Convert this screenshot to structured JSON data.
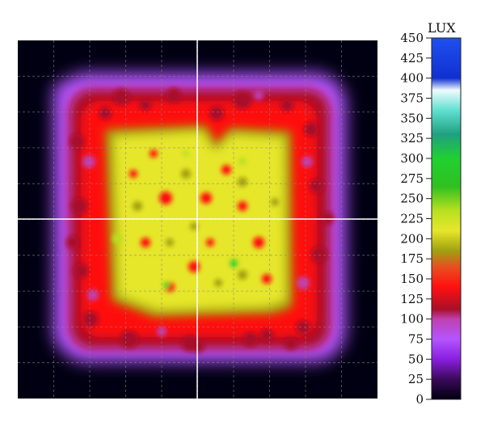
{
  "chart_data": {
    "type": "heatmap",
    "title": "",
    "unit": "LUX",
    "colorbar": {
      "min": 0,
      "max": 450,
      "ticks": [
        "450",
        "425",
        "400",
        "375",
        "350",
        "325",
        "300",
        "275",
        "250",
        "225",
        "200",
        "175",
        "150",
        "125",
        "100",
        "75",
        "50",
        "25",
        "0"
      ],
      "stops": [
        {
          "value": 0,
          "color": "#000010"
        },
        {
          "value": 25,
          "color": "#3a0a5a"
        },
        {
          "value": 50,
          "color": "#8a1ee0"
        },
        {
          "value": 75,
          "color": "#b455ff"
        },
        {
          "value": 100,
          "color": "#c040b0"
        },
        {
          "value": 112,
          "color": "#a8102a"
        },
        {
          "value": 140,
          "color": "#ff1010"
        },
        {
          "value": 165,
          "color": "#e85020"
        },
        {
          "value": 185,
          "color": "#a0a010"
        },
        {
          "value": 210,
          "color": "#e6e62a"
        },
        {
          "value": 235,
          "color": "#b8e020"
        },
        {
          "value": 265,
          "color": "#30c020"
        },
        {
          "value": 300,
          "color": "#20d030"
        },
        {
          "value": 330,
          "color": "#20a080"
        },
        {
          "value": 360,
          "color": "#60e0d0"
        },
        {
          "value": 385,
          "color": "#f0fbff"
        },
        {
          "value": 400,
          "color": "#1030d0"
        },
        {
          "value": 450,
          "color": "#2050f0"
        }
      ]
    },
    "crosshair": {
      "x": "center",
      "y": "center"
    },
    "grid": true
  }
}
